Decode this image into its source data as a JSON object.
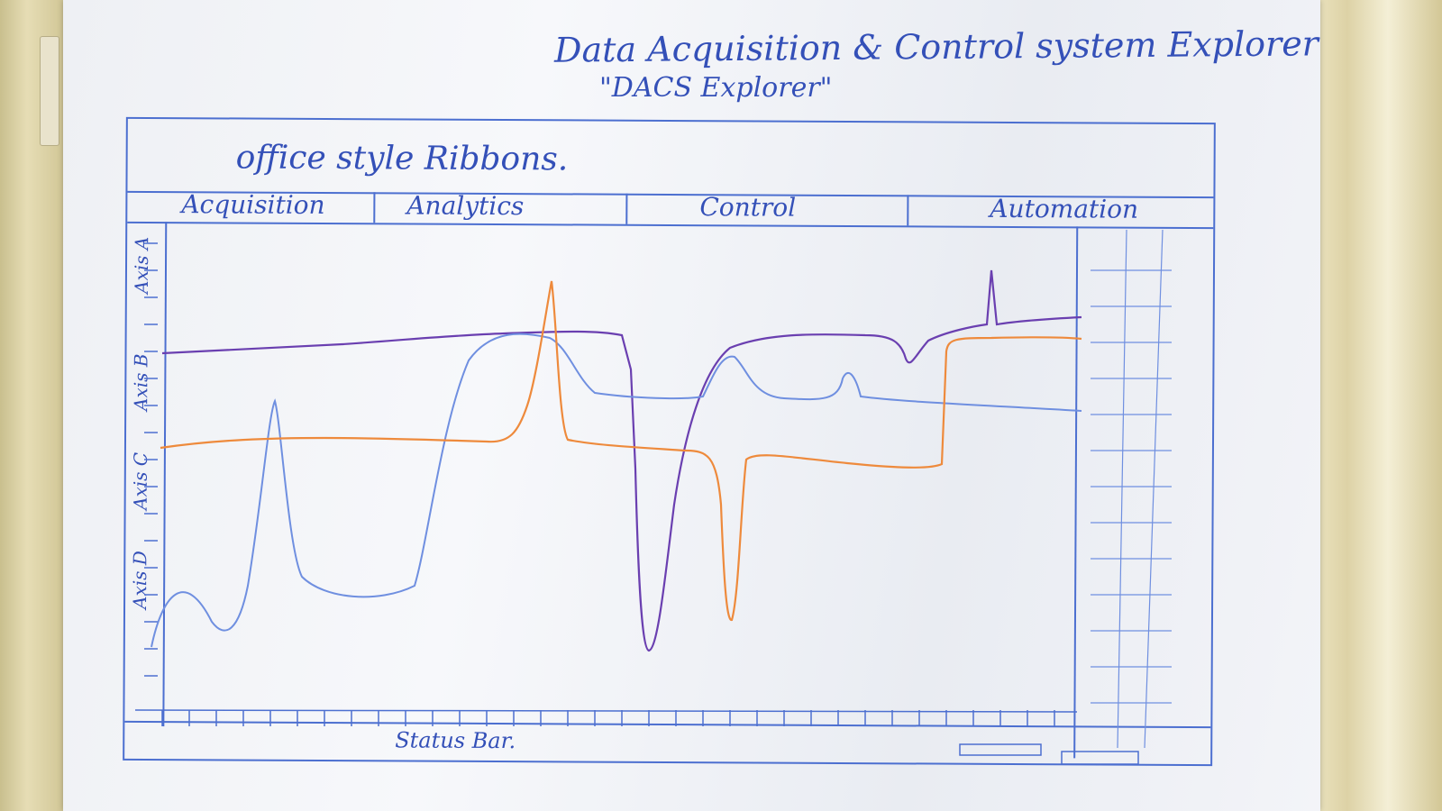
{
  "title": "Data Acquisition & Control system Explorer",
  "subtitle": "\"DACS Explorer\"",
  "ribbon_label": "office style Ribbons.",
  "tabs": [
    "Acquisition",
    "Analytics",
    "Control",
    "Automation"
  ],
  "axes": [
    "Axis A",
    "Axis B",
    "Axis C",
    "Axis D"
  ],
  "status_bar": "Status Bar.",
  "colors": {
    "pen_blue": "#4c6fd0",
    "trace_purple": "#6a3fb0",
    "trace_orange": "#ee8a3c",
    "trace_blue": "#6f8fe0"
  }
}
